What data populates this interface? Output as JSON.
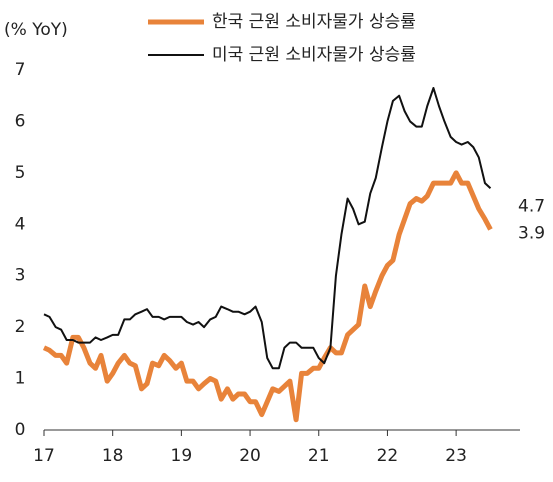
{
  "chart_data": {
    "type": "line",
    "y_label": "(% YoY)",
    "x": [
      17.0,
      17.08,
      17.17,
      17.25,
      17.33,
      17.42,
      17.5,
      17.58,
      17.67,
      17.75,
      17.83,
      17.92,
      18.0,
      18.08,
      18.17,
      18.25,
      18.33,
      18.42,
      18.5,
      18.58,
      18.67,
      18.75,
      18.83,
      18.92,
      19.0,
      19.08,
      19.17,
      19.25,
      19.33,
      19.42,
      19.5,
      19.58,
      19.67,
      19.75,
      19.83,
      19.92,
      20.0,
      20.08,
      20.17,
      20.25,
      20.33,
      20.42,
      20.5,
      20.58,
      20.67,
      20.75,
      20.83,
      20.92,
      21.0,
      21.08,
      21.17,
      21.25,
      21.33,
      21.42,
      21.5,
      21.58,
      21.67,
      21.75,
      21.83,
      21.92,
      22.0,
      22.08,
      22.17,
      22.25,
      22.33,
      22.42,
      22.5,
      22.58,
      22.67,
      22.75,
      22.83,
      22.92,
      23.0,
      23.08,
      23.17,
      23.25,
      23.33,
      23.42,
      23.5
    ],
    "series": [
      {
        "name": "한국 근원 소비자물가 상승률",
        "color": "#e8833a",
        "width": 5,
        "end_label": "3.9",
        "values": [
          1.6,
          1.55,
          1.45,
          1.45,
          1.3,
          1.8,
          1.8,
          1.6,
          1.3,
          1.2,
          1.45,
          0.95,
          1.1,
          1.3,
          1.45,
          1.3,
          1.25,
          0.8,
          0.9,
          1.3,
          1.25,
          1.45,
          1.35,
          1.2,
          1.3,
          0.95,
          0.95,
          0.8,
          0.9,
          1.0,
          0.95,
          0.6,
          0.8,
          0.6,
          0.7,
          0.7,
          0.55,
          0.55,
          0.3,
          0.55,
          0.8,
          0.75,
          0.85,
          0.95,
          0.2,
          1.1,
          1.1,
          1.2,
          1.2,
          1.4,
          1.6,
          1.5,
          1.5,
          1.85,
          1.95,
          2.05,
          2.8,
          2.4,
          2.7,
          3.0,
          3.2,
          3.3,
          3.8,
          4.1,
          4.4,
          4.5,
          4.45,
          4.55,
          4.8,
          4.8,
          4.8,
          4.8,
          5.0,
          4.8,
          4.8,
          4.55,
          4.3,
          4.1,
          3.9
        ]
      },
      {
        "name": "미국 근원 소비자물가 상승률",
        "color": "#111111",
        "width": 2,
        "end_label": "4.7",
        "values": [
          2.25,
          2.2,
          2.0,
          1.95,
          1.75,
          1.75,
          1.7,
          1.7,
          1.7,
          1.8,
          1.75,
          1.8,
          1.85,
          1.85,
          2.15,
          2.15,
          2.25,
          2.3,
          2.35,
          2.2,
          2.2,
          2.15,
          2.2,
          2.2,
          2.2,
          2.1,
          2.05,
          2.1,
          2.0,
          2.15,
          2.2,
          2.4,
          2.35,
          2.3,
          2.3,
          2.25,
          2.3,
          2.4,
          2.1,
          1.4,
          1.2,
          1.2,
          1.6,
          1.7,
          1.7,
          1.6,
          1.6,
          1.6,
          1.4,
          1.3,
          1.6,
          3.0,
          3.8,
          4.5,
          4.3,
          4.0,
          4.05,
          4.6,
          4.9,
          5.5,
          6.0,
          6.4,
          6.5,
          6.2,
          6.0,
          5.9,
          5.9,
          6.3,
          6.65,
          6.3,
          6.0,
          5.7,
          5.6,
          5.55,
          5.6,
          5.5,
          5.3,
          4.8,
          4.7
        ]
      }
    ],
    "xlim": [
      17,
      23.93
    ],
    "xticks": [
      17,
      18,
      19,
      20,
      21,
      22,
      23
    ],
    "ylim": [
      0,
      7
    ],
    "yticks": [
      0,
      1,
      2,
      3,
      4,
      5,
      6,
      7
    ],
    "grid": false,
    "legend": "top"
  }
}
